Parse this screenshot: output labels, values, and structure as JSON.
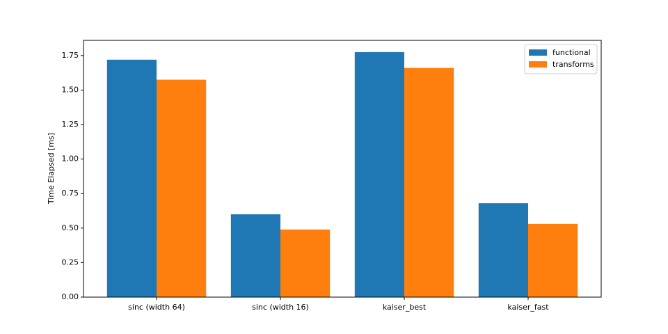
{
  "chart_data": {
    "type": "bar",
    "y_label": "Time Elapsed [ms]",
    "categories": [
      "sinc (width 64)",
      "sinc (width 16)",
      "kaiser_best",
      "kaiser_fast"
    ],
    "series": [
      {
        "name": "functional",
        "color": "#1f77b4",
        "values": [
          1.72,
          0.6,
          1.775,
          0.68
        ]
      },
      {
        "name": "transforms",
        "color": "#ff7f0e",
        "values": [
          1.575,
          0.49,
          1.66,
          0.53
        ]
      }
    ],
    "ylim": [
      0,
      1.86
    ],
    "yticks": [
      {
        "value": 0,
        "label": "0.00"
      },
      {
        "value": 0.25,
        "label": "0.25"
      },
      {
        "value": 0.5,
        "label": "0.50"
      },
      {
        "value": 0.75,
        "label": "0.75"
      },
      {
        "value": 1,
        "label": "1.00"
      },
      {
        "value": 1.25,
        "label": "1.25"
      },
      {
        "value": 1.5,
        "label": "1.50"
      },
      {
        "value": 1.75,
        "label": "1.75"
      }
    ],
    "legend": "upper right"
  }
}
